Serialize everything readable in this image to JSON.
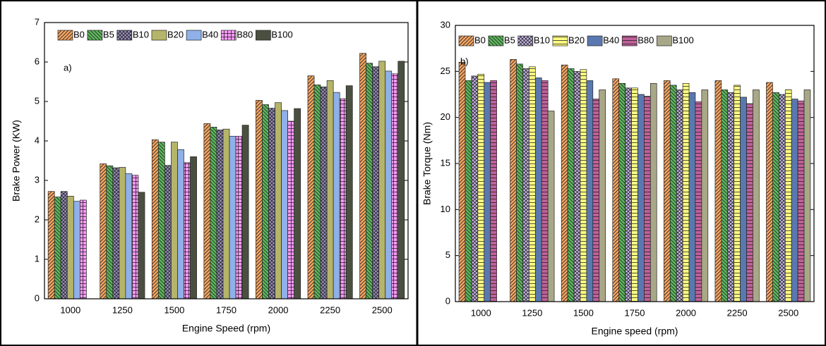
{
  "chart_data": [
    {
      "type": "bar",
      "annotation": "a)",
      "xlabel": "Engine Speed (rpm)",
      "ylabel": "Brake Power (KW)",
      "categories": [
        "1000",
        "1250",
        "1500",
        "1750",
        "2000",
        "2250",
        "2500"
      ],
      "ylim": [
        0,
        7
      ],
      "yticks": [
        0,
        1,
        2,
        3,
        4,
        5,
        6,
        7
      ],
      "series": [
        {
          "name": "B0",
          "color": "#f4a460",
          "hatch": "diag",
          "values": [
            2.72,
            3.42,
            4.03,
            4.44,
            5.03,
            5.65,
            6.22
          ]
        },
        {
          "name": "B5",
          "color": "#5cb85c",
          "hatch": "diag2",
          "values": [
            2.58,
            3.37,
            3.97,
            4.35,
            4.92,
            5.42,
            5.97
          ]
        },
        {
          "name": "B10",
          "color": "#9b8fc0",
          "hatch": "cross",
          "values": [
            2.72,
            3.32,
            3.38,
            4.28,
            4.83,
            5.37,
            5.88
          ]
        },
        {
          "name": "B20",
          "color": "#b5b56a",
          "hatch": "none",
          "values": [
            2.6,
            3.33,
            3.97,
            4.3,
            4.97,
            5.53,
            6.02
          ]
        },
        {
          "name": "B40",
          "color": "#8fb0e8",
          "hatch": "none",
          "values": [
            2.47,
            3.17,
            3.78,
            4.12,
            4.77,
            5.23,
            5.77
          ]
        },
        {
          "name": "B80",
          "color": "#ff99ff",
          "hatch": "grid",
          "values": [
            2.5,
            3.13,
            3.45,
            4.12,
            4.5,
            5.07,
            5.7
          ]
        },
        {
          "name": "B100",
          "color": "#4a5040",
          "hatch": "none",
          "values": [
            null,
            2.7,
            3.6,
            4.4,
            4.82,
            5.4,
            6.02
          ]
        }
      ]
    },
    {
      "type": "bar",
      "annotation": "b)",
      "xlabel": "Engine speed (rpm)",
      "ylabel": "Brake Torque (Nm)",
      "categories": [
        "1000",
        "1250",
        "1500",
        "1750",
        "2000",
        "2250",
        "2500"
      ],
      "ylim": [
        0,
        30
      ],
      "yticks": [
        0,
        5,
        10,
        15,
        20,
        25,
        30
      ],
      "series": [
        {
          "name": "B0",
          "color": "#f4a460",
          "hatch": "diag",
          "values": [
            26,
            26.3,
            25.7,
            24.2,
            24,
            24,
            23.8
          ]
        },
        {
          "name": "B5",
          "color": "#5cb85c",
          "hatch": "diag2",
          "values": [
            24,
            25.8,
            25.3,
            23.7,
            23.5,
            23,
            22.7
          ]
        },
        {
          "name": "B10",
          "color": "#c8b8e8",
          "hatch": "cross",
          "values": [
            24.5,
            25.3,
            25,
            23.2,
            23,
            22.7,
            22.5
          ]
        },
        {
          "name": "B20",
          "color": "#ffff80",
          "hatch": "hlines",
          "values": [
            24.7,
            25.5,
            25.2,
            23.2,
            23.7,
            23.5,
            23
          ]
        },
        {
          "name": "B40",
          "color": "#5a78b0",
          "hatch": "none",
          "values": [
            23.8,
            24.3,
            24,
            22.5,
            22.7,
            22.2,
            22
          ]
        },
        {
          "name": "B80",
          "color": "#c0609a",
          "hatch": "hlines",
          "values": [
            24,
            24,
            22,
            22.3,
            21.7,
            21.5,
            21.8
          ]
        },
        {
          "name": "B100",
          "color": "#a8a888",
          "hatch": "none",
          "values": [
            null,
            20.7,
            23,
            23.7,
            23,
            23,
            23
          ]
        }
      ]
    }
  ]
}
